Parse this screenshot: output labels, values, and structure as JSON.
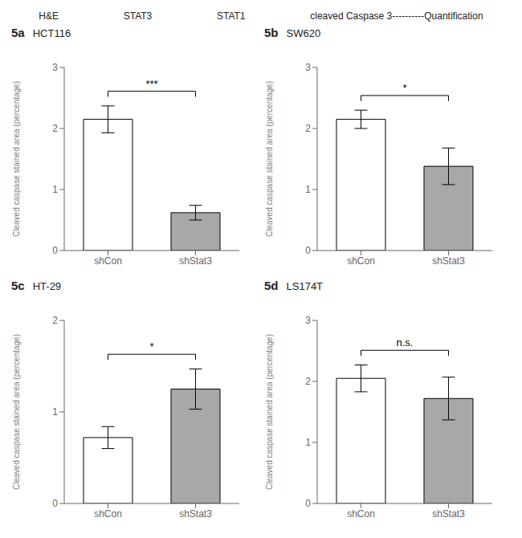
{
  "chart_data": [
    {
      "type": "bar",
      "title": "5a",
      "subtitle": "HCT116",
      "ylabel": "Cleaved caspase stained area (percentage)",
      "categories": [
        "shCon",
        "shStat3"
      ],
      "values": [
        2.15,
        0.62
      ],
      "errors": [
        0.22,
        0.12
      ],
      "colors": [
        "#ffffff",
        "#a8a8a8"
      ],
      "ylim": [
        0,
        3
      ],
      "yticks": [
        0,
        1,
        2,
        3
      ],
      "grid": false,
      "annotations": [
        "H&E",
        "STAT3",
        "STAT1",
        "cleaved Caspase 3----------Quantification",
        {
          "text": "***",
          "between": [
            "shCon",
            "shStat3"
          ]
        }
      ]
    },
    {
      "type": "bar",
      "title": "5b",
      "subtitle": "SW620",
      "ylabel": "Cleaved caspase stained area (percentage)",
      "categories": [
        "shCon",
        "shStat3"
      ],
      "values": [
        2.15,
        1.38
      ],
      "errors": [
        0.15,
        0.3
      ],
      "colors": [
        "#ffffff",
        "#a8a8a8"
      ],
      "ylim": [
        0,
        3
      ],
      "yticks": [
        0,
        1,
        2,
        3
      ],
      "grid": false,
      "annotations": [
        {
          "text": "*",
          "between": [
            "shCon",
            "shStat3"
          ]
        }
      ]
    },
    {
      "type": "bar",
      "title": "5c",
      "subtitle": "HT-29",
      "ylabel": "Cleaved caspase stained area (percentage)",
      "categories": [
        "shCon",
        "shStat3"
      ],
      "values": [
        0.72,
        1.25
      ],
      "errors": [
        0.12,
        0.22
      ],
      "colors": [
        "#ffffff",
        "#a8a8a8"
      ],
      "ylim": [
        0,
        2
      ],
      "yticks": [
        0,
        1,
        2
      ],
      "grid": false,
      "annotations": [
        {
          "text": "*",
          "between": [
            "shCon",
            "shStat3"
          ]
        }
      ]
    },
    {
      "type": "bar",
      "title": "5d",
      "subtitle": "LS174T",
      "ylabel": "Cleaved caspase stained area (percentage)",
      "categories": [
        "shCon",
        "shStat3"
      ],
      "values": [
        2.05,
        1.72
      ],
      "errors": [
        0.22,
        0.35
      ],
      "colors": [
        "#ffffff",
        "#a8a8a8"
      ],
      "ylim": [
        0,
        3
      ],
      "yticks": [
        0,
        1,
        2,
        3
      ],
      "grid": false,
      "annotations": [
        {
          "text": "n.s.",
          "between": [
            "shCon",
            "shStat3"
          ]
        }
      ]
    }
  ]
}
